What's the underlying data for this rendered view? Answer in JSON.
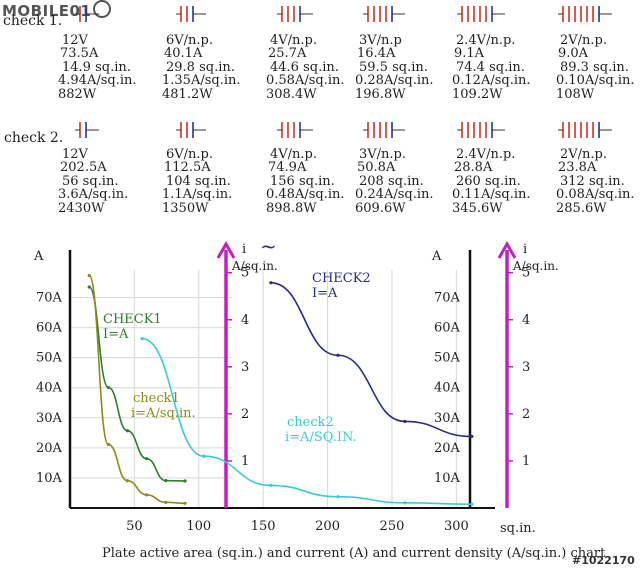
{
  "watermark_logo": "MOBILE01",
  "check_rows": [
    {
      "label": "check 1.",
      "cells": [
        {
          "voltage": "12V",
          "current": "73.5A",
          "area": "14.9 sq.in.",
          "density": "4.94A/sq.in.",
          "power": "882W",
          "plates": 2
        },
        {
          "voltage": "6V/n.p.",
          "current": "40.1A",
          "area": "29.8 sq.in.",
          "density": "1.35A/sq.in.",
          "power": "481.2W",
          "plates": 3
        },
        {
          "voltage": "4V/n.p.",
          "current": "25.7A",
          "area": "44.6 sq.in.",
          "density": "0.58A/sq.in.",
          "power": "308.4W",
          "plates": 4
        },
        {
          "voltage": "3V/n.p",
          "current": "16.4A",
          "area": "59.5 sq.in.",
          "density": "0.28A/sq.in.",
          "power": "196.8W",
          "plates": 5
        },
        {
          "voltage": "2.4V/n.p.",
          "current": "9.1A",
          "area": "74.4 sq.in.",
          "density": "0.12A/sq.in.",
          "power": "109.2W",
          "plates": 6
        },
        {
          "voltage": "2V/n.p.",
          "current": "9.0A",
          "area": "89.3 sq.in.",
          "density": "0.10A/sq.in.",
          "power": "108W",
          "plates": 7
        }
      ]
    },
    {
      "label": "check 2.",
      "cells": [
        {
          "voltage": "12V",
          "current": "202.5A",
          "area": "56 sq.in.",
          "density": "3.6A/sq.in.",
          "power": "2430W",
          "plates": 2
        },
        {
          "voltage": "6V/n.p.",
          "current": "112.5A",
          "area": "104 sq.in.",
          "density": "1.1A/sq.in.",
          "power": "1350W",
          "plates": 3
        },
        {
          "voltage": "4V/n.p.",
          "current": "74.9A",
          "area": "156 sq.in.",
          "density": "0.48A/sq.in.",
          "power": "898.8W",
          "plates": 4
        },
        {
          "voltage": "3V/n.p.",
          "current": "50.8A",
          "area": "208 sq.in.",
          "density": "0.24A/sq.in.",
          "power": "609.6W",
          "plates": 5
        },
        {
          "voltage": "2.4V/n.p.",
          "current": "28.8A",
          "area": "260 sq.in.",
          "density": "0.11A/sq.in.",
          "power": "345.6W",
          "plates": 6
        },
        {
          "voltage": "2V/n.p.",
          "current": "23.8A",
          "area": "312 sq.in.",
          "density": "0.08A/sq.in.",
          "power": "285.6W",
          "plates": 7
        }
      ]
    }
  ],
  "chart_data": {
    "type": "line",
    "caption": "Plate active area (sq.in.) and current (A) and current density (A/sq.in.)  chart",
    "x_axis": {
      "unit": "sq.in.",
      "ticks": [
        50,
        100,
        150,
        200,
        250,
        300
      ],
      "range": [
        0,
        330
      ]
    },
    "left_y_axis": {
      "label": "A",
      "ticks": [
        "10A",
        "20A",
        "30A",
        "40A",
        "50A",
        "60A",
        "70A"
      ],
      "range": [
        0,
        75
      ]
    },
    "left_density_axis": {
      "label_symbol": "i",
      "label_unit": "A/sq.in.",
      "ticks": [
        "1",
        "2",
        "3",
        "4",
        "5"
      ],
      "range": [
        0,
        5.4
      ]
    },
    "right_y_axis": {
      "label": "A",
      "ticks": [
        "10A",
        "20A",
        "30A",
        "40A",
        "50A",
        "60A",
        "70A"
      ],
      "range": [
        0,
        75
      ]
    },
    "right_density_axis": {
      "label_symbol": "i",
      "label_unit": "A/sq.in.",
      "ticks": [
        "1",
        "2",
        "3",
        "4",
        "5"
      ],
      "range": [
        0,
        5.4
      ]
    },
    "top_symbol": "~",
    "series": [
      {
        "name": "CHECK1",
        "label_line1": "CHECK1",
        "label_line2": "I=A",
        "color": "#2e7d2e",
        "axis": "current",
        "x": [
          14.9,
          29.8,
          44.6,
          59.5,
          74.4,
          89.3
        ],
        "y": [
          73.5,
          40.1,
          25.7,
          16.4,
          9.1,
          9.0
        ]
      },
      {
        "name": "check1",
        "label_line1": "check1",
        "label_line2": "i=A/sq.in.",
        "color": "#8a8a1e",
        "axis": "density",
        "x": [
          14.9,
          29.8,
          44.6,
          59.5,
          74.4,
          89.3
        ],
        "y": [
          4.94,
          1.35,
          0.58,
          0.28,
          0.12,
          0.1
        ]
      },
      {
        "name": "CHECK2",
        "label_line1": "CHECK2",
        "label_line2": "I=A",
        "color": "#2a2a8a",
        "axis": "current",
        "x": [
          156,
          208,
          260,
          312
        ],
        "y": [
          74.9,
          50.8,
          28.8,
          23.8
        ]
      },
      {
        "name": "check2",
        "label_line1": "check2",
        "label_line2": "i=A/SQ.IN.",
        "color": "#3cc8dc",
        "axis": "density",
        "x": [
          56,
          104,
          156,
          208,
          260,
          312
        ],
        "y": [
          3.6,
          1.1,
          0.48,
          0.24,
          0.11,
          0.08
        ]
      }
    ]
  },
  "colors": {
    "density_axis": "#c020c0",
    "axes": "#111111",
    "plate_red": "#cc3322",
    "plate_blue": "#223399"
  },
  "watermark": "#1022170"
}
